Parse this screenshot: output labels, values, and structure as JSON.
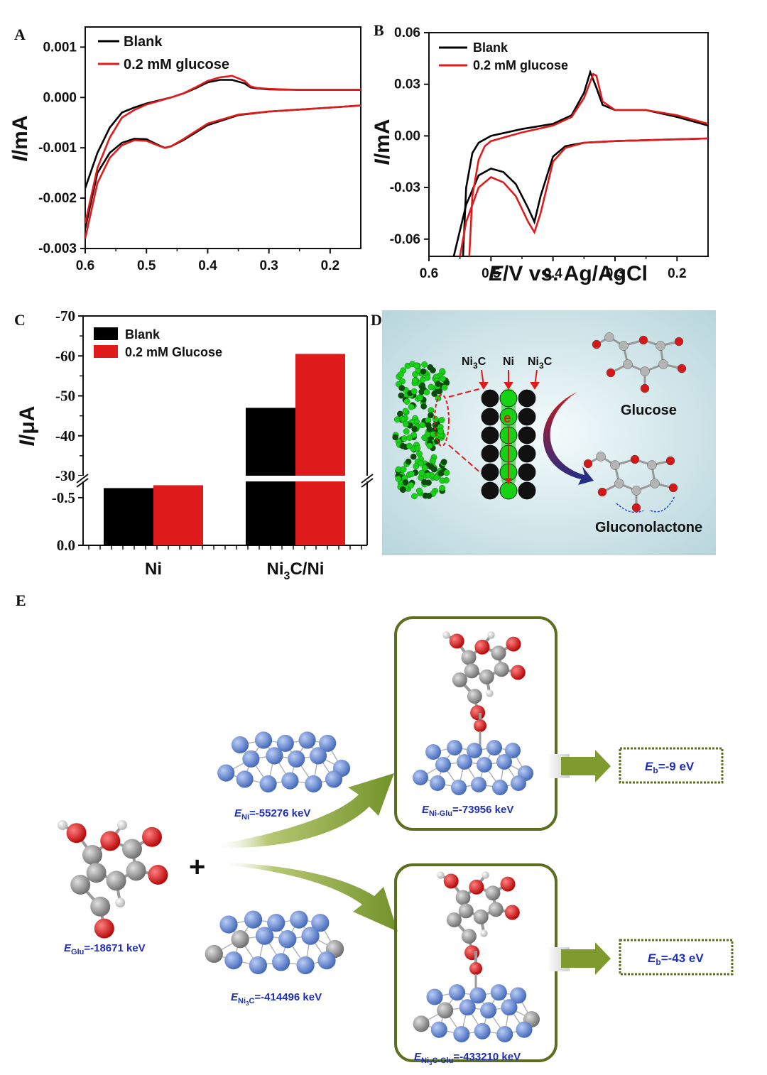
{
  "panels": {
    "A": "A",
    "B": "B",
    "C": "C",
    "D": "D",
    "E": "E"
  },
  "colors": {
    "blank": "#000000",
    "glucose": "#e01b1b",
    "ni_atom": "#16d116",
    "c_atom": "#111111",
    "slab_atom": "#5a7fd0",
    "oxygen": "#d41818",
    "carbon": "#8a8a8a",
    "arrow_green": "#8aa83a",
    "label_blue": "#1f2fb8"
  },
  "chart_data": [
    {
      "panel": "A",
      "type": "line",
      "xlabel_italic": "",
      "xlabel": "",
      "ylabel_italic": "I",
      "ylabel": "/mA",
      "xlim": [
        0.6,
        0.15
      ],
      "ylim": [
        -0.003,
        0.0014
      ],
      "xticks": [
        0.6,
        0.5,
        0.4,
        0.3,
        0.2
      ],
      "xtick_labels": [
        "0.6",
        "0.5",
        "0.4",
        "0.3",
        "0.2"
      ],
      "yticks": [
        0.001,
        0.0,
        -0.001,
        -0.002,
        -0.003
      ],
      "ytick_labels": [
        "0.001",
        "0.000",
        "-0.001",
        "-0.002",
        "-0.003"
      ],
      "legend": [
        "Blank",
        "0.2 mM glucose"
      ],
      "legend_placement": "top-left",
      "series": [
        {
          "name": "Blank",
          "forward": {
            "x": [
              0.6,
              0.58,
              0.56,
              0.54,
              0.52,
              0.5,
              0.48,
              0.46,
              0.44,
              0.42,
              0.4,
              0.38,
              0.36,
              0.34,
              0.33,
              0.32,
              0.3,
              0.25,
              0.2,
              0.15
            ],
            "y": [
              -0.0018,
              -0.0011,
              -0.0006,
              -0.0003,
              -0.0002,
              -0.00012,
              -6e-05,
              0.0,
              8e-05,
              0.00018,
              0.0003,
              0.00035,
              0.00035,
              0.00028,
              0.0002,
              0.00018,
              0.00016,
              0.00015,
              0.00015,
              0.00015
            ]
          },
          "reverse": {
            "x": [
              0.15,
              0.2,
              0.25,
              0.3,
              0.35,
              0.4,
              0.44,
              0.46,
              0.47,
              0.48,
              0.5,
              0.52,
              0.54,
              0.56,
              0.58,
              0.6
            ],
            "y": [
              -0.00016,
              -0.0002,
              -0.00024,
              -0.00028,
              -0.00035,
              -0.00055,
              -0.00085,
              -0.00097,
              -0.001,
              -0.00095,
              -0.00083,
              -0.00082,
              -0.0009,
              -0.0011,
              -0.0015,
              -0.0026
            ]
          }
        },
        {
          "name": "0.2 mM glucose",
          "forward": {
            "x": [
              0.6,
              0.58,
              0.56,
              0.54,
              0.52,
              0.5,
              0.48,
              0.46,
              0.44,
              0.42,
              0.4,
              0.38,
              0.36,
              0.34,
              0.33,
              0.32,
              0.3,
              0.25,
              0.2,
              0.15
            ],
            "y": [
              -0.0025,
              -0.0014,
              -0.0008,
              -0.0004,
              -0.00025,
              -0.00014,
              -7e-05,
              0.0,
              8e-05,
              0.0002,
              0.00033,
              0.0004,
              0.00043,
              0.00033,
              0.00022,
              0.00019,
              0.00017,
              0.00015,
              0.00015,
              0.00015
            ]
          },
          "reverse": {
            "x": [
              0.15,
              0.2,
              0.25,
              0.3,
              0.35,
              0.4,
              0.44,
              0.46,
              0.47,
              0.48,
              0.5,
              0.52,
              0.54,
              0.56,
              0.58,
              0.6
            ],
            "y": [
              -0.00016,
              -0.0002,
              -0.00024,
              -0.00028,
              -0.00034,
              -0.00052,
              -0.00083,
              -0.00097,
              -0.001,
              -0.00096,
              -0.00086,
              -0.00085,
              -0.00095,
              -0.0012,
              -0.0017,
              -0.0028
            ]
          }
        }
      ]
    },
    {
      "panel": "B",
      "type": "line",
      "xlabel_italic": "E",
      "xlabel": "/V vs. Ag/AgCl",
      "ylabel_italic": "I",
      "ylabel": "/mA",
      "xlim": [
        0.6,
        0.15
      ],
      "ylim": [
        -0.07,
        0.06
      ],
      "xticks": [
        0.6,
        0.5,
        0.4,
        0.3,
        0.2
      ],
      "xtick_labels": [
        "0.6",
        "0.5",
        "0.4",
        "0.3",
        "0.2"
      ],
      "yticks": [
        0.06,
        0.03,
        0.0,
        -0.03,
        -0.06
      ],
      "ytick_labels": [
        "0.06",
        "0.03",
        "0.00",
        "-0.03",
        "-0.06"
      ],
      "legend": [
        "Blank",
        "0.2 mM glucose"
      ],
      "legend_placement": "top-left",
      "series": [
        {
          "name": "Blank",
          "forward": {
            "x": [
              0.545,
              0.54,
              0.53,
              0.52,
              0.5,
              0.45,
              0.4,
              0.37,
              0.35,
              0.34,
              0.33,
              0.32,
              0.3,
              0.25,
              0.2,
              0.15
            ],
            "y": [
              -0.07,
              -0.03,
              -0.01,
              -0.004,
              0.0,
              0.004,
              0.007,
              0.012,
              0.025,
              0.037,
              0.028,
              0.018,
              0.015,
              0.015,
              0.011,
              0.006
            ]
          },
          "reverse": {
            "x": [
              0.15,
              0.2,
              0.25,
              0.3,
              0.35,
              0.38,
              0.4,
              0.42,
              0.43,
              0.44,
              0.46,
              0.48,
              0.5,
              0.52,
              0.54,
              0.56
            ],
            "y": [
              -0.0015,
              -0.002,
              -0.0025,
              -0.003,
              -0.004,
              -0.006,
              -0.012,
              -0.035,
              -0.05,
              -0.042,
              -0.028,
              -0.021,
              -0.019,
              -0.023,
              -0.04,
              -0.07
            ]
          }
        },
        {
          "name": "0.2 mM glucose",
          "forward": {
            "x": [
              0.535,
              0.53,
              0.52,
              0.51,
              0.5,
              0.45,
              0.4,
              0.37,
              0.35,
              0.335,
              0.33,
              0.32,
              0.3,
              0.25,
              0.2,
              0.15
            ],
            "y": [
              -0.07,
              -0.035,
              -0.014,
              -0.006,
              -0.003,
              0.002,
              0.006,
              0.011,
              0.022,
              0.036,
              0.035,
              0.02,
              0.015,
              0.015,
              0.012,
              0.007
            ]
          },
          "reverse": {
            "x": [
              0.15,
              0.2,
              0.25,
              0.3,
              0.35,
              0.38,
              0.4,
              0.42,
              0.43,
              0.44,
              0.46,
              0.48,
              0.5,
              0.52,
              0.54,
              0.55
            ],
            "y": [
              -0.0015,
              -0.002,
              -0.0025,
              -0.003,
              -0.004,
              -0.007,
              -0.015,
              -0.045,
              -0.056,
              -0.05,
              -0.035,
              -0.027,
              -0.024,
              -0.03,
              -0.05,
              -0.07
            ]
          }
        }
      ]
    },
    {
      "panel": "C",
      "type": "bar",
      "xlabel": "",
      "ylabel_italic": "I",
      "ylabel": "/μA",
      "axis_break": "between -0.5 and -30",
      "upper_ylim": [
        -30,
        -70
      ],
      "lower_ylim": [
        0.0,
        -0.7
      ],
      "yticks_upper": [
        "-70",
        "-60",
        "-50",
        "-40",
        "-30"
      ],
      "yticks_lower": [
        "-0.5",
        "0.0"
      ],
      "categories": [
        "Ni",
        "Ni3C/Ni"
      ],
      "category_labels": [
        {
          "main": "Ni",
          "sub": "",
          "tail": ""
        },
        {
          "main": "Ni",
          "sub": "3",
          "tail": "C/Ni"
        }
      ],
      "legend": [
        "Blank",
        "0.2  mM Glucose"
      ],
      "legend_placement": "top-left",
      "series": [
        {
          "name": "Blank",
          "values": [
            -0.6,
            -47
          ]
        },
        {
          "name": "0.2  mM Glucose",
          "values": [
            -0.63,
            -60.5
          ]
        }
      ]
    }
  ],
  "panel_d": {
    "labels": {
      "left_ni3c_main": "Ni",
      "left_ni3c_sub": "3",
      "left_ni3c_tail": "C",
      "ni": "Ni",
      "right_ni3c_main": "Ni",
      "right_ni3c_sub": "3",
      "right_ni3c_tail": "C",
      "electron": "e",
      "glucose": "Glucose",
      "gluconolactone": "Gluconolactone"
    }
  },
  "panel_e": {
    "plus": "+",
    "e_glu": {
      "e": "E",
      "sub": "Glu",
      "value": "=-18671 keV"
    },
    "e_ni": {
      "e": "E",
      "sub": "Ni",
      "value": "=-55276 keV"
    },
    "e_ni3c": {
      "e": "E",
      "sub_a": "Ni",
      "sub_b": "3",
      "sub_c": "C",
      "value": "=-414496  keV"
    },
    "e_ni_glu": {
      "e": "E",
      "sub": "Ni-Glu",
      "value": "=-73956 keV"
    },
    "e_ni3c_glu": {
      "e": "E",
      "sub_a": "Ni",
      "sub_b": "3",
      "sub_c": "C-Glu",
      "value": "=-433210 keV"
    },
    "eb_ni": {
      "e": "E",
      "sub": "b",
      "value": "=-9 eV"
    },
    "eb_ni3c": {
      "e": "E",
      "sub": "b",
      "value": "=-43 eV"
    }
  }
}
